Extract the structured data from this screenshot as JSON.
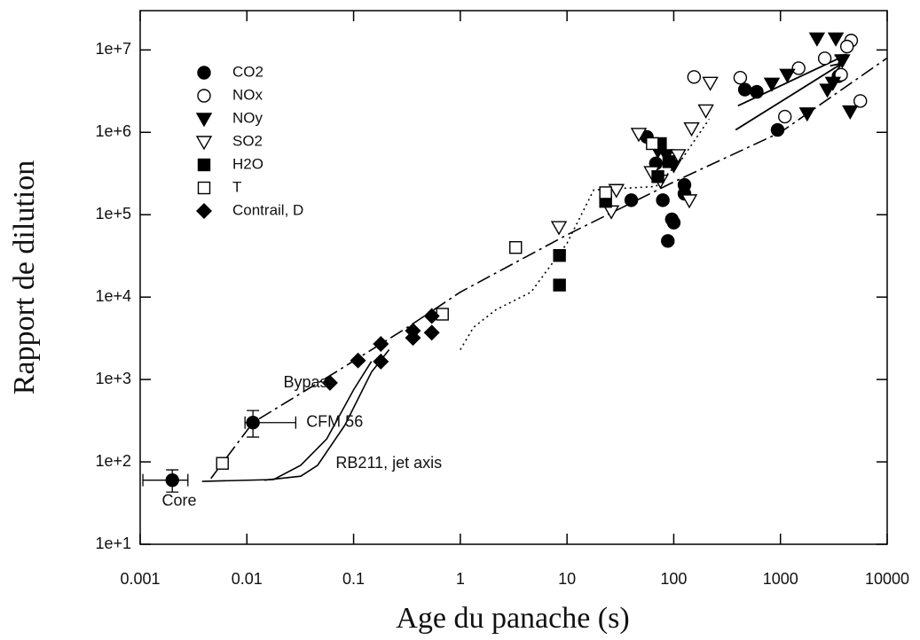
{
  "chart_data": {
    "type": "scatter",
    "xlabel": "Age du panache (s)",
    "ylabel": "Rapport de dilution",
    "xscale": "log",
    "yscale": "log",
    "xlim": [
      0.001,
      10000
    ],
    "ylim": [
      10,
      30000000
    ],
    "xticks": [
      0.001,
      0.01,
      0.1,
      1,
      10,
      100,
      1000,
      10000
    ],
    "yticks": [
      {
        "value": 10,
        "label": "1e+1"
      },
      {
        "value": 100,
        "label": "1e+2"
      },
      {
        "value": 1000,
        "label": "1e+3"
      },
      {
        "value": 10000,
        "label": "1e+4"
      },
      {
        "value": 100000,
        "label": "1e+5"
      },
      {
        "value": 1000000,
        "label": "1e+6"
      },
      {
        "value": 10000000,
        "label": "1e+7"
      }
    ],
    "legend": "upper left",
    "series": [
      {
        "name": "CO2",
        "marker": "circle",
        "color": "#000000",
        "x": [
          0.002,
          0.0114,
          40,
          56,
          68,
          79,
          88,
          96,
          100,
          126,
          126,
          464,
          600,
          940,
          3500
        ],
        "values": [
          60,
          300,
          150000,
          880000,
          420000,
          150000,
          48000,
          88000,
          80000,
          230000,
          180000,
          3300000,
          3100000,
          1070000,
          4800000
        ]
      },
      {
        "name": "NOx",
        "marker": "circle-open",
        "color": "#000000",
        "x": [
          155,
          420,
          1480,
          2600,
          4600,
          4200,
          5600,
          1100,
          3700
        ],
        "values": [
          4700000,
          4600000,
          6000000,
          7900000,
          13000000,
          11000000,
          2400000,
          1550000,
          5000000
        ]
      },
      {
        "name": "NOy",
        "marker": "tri-down",
        "color": "#000000",
        "x": [
          2200,
          3300,
          830,
          1160,
          1780,
          2750,
          3100,
          3800,
          4500,
          71,
          85,
          100
        ],
        "values": [
          13800000,
          13800000,
          3900000,
          5000000,
          1700000,
          3300000,
          4000000,
          7500000,
          1800000,
          600000,
          530000,
          400000
        ]
      },
      {
        "name": "SO2",
        "marker": "tri-down-open",
        "color": "#000000",
        "x": [
          8.4,
          26,
          29,
          47,
          62,
          140,
          147,
          200,
          220,
          110,
          75
        ],
        "values": [
          71000,
          110000,
          200000,
          960000,
          330000,
          150000,
          1120000,
          1850000,
          4000000,
          530000,
          260000
        ]
      },
      {
        "name": "H2O",
        "marker": "square",
        "color": "#000000",
        "x": [
          8.5,
          8.5,
          23,
          75,
          90,
          71
        ],
        "values": [
          32000,
          14000,
          145000,
          730000,
          440000,
          290000
        ]
      },
      {
        "name": "T",
        "marker": "square-open",
        "color": "#000000",
        "x": [
          0.0059,
          0.68,
          3.3,
          23,
          63
        ],
        "values": [
          96,
          6200,
          40000,
          185000,
          730000
        ]
      },
      {
        "name": "Contrail, D",
        "marker": "diamond",
        "color": "#000000",
        "x": [
          0.06,
          0.11,
          0.18,
          0.18,
          0.36,
          0.36,
          0.54,
          0.54
        ],
        "values": [
          910,
          1700,
          2700,
          1650,
          3900,
          3200,
          5900,
          3700
        ]
      }
    ],
    "error_bars": [
      {
        "x": 0.002,
        "y": 60,
        "xrange": [
          0.00106,
          0.0028
        ],
        "yrange": [
          43,
          80
        ]
      },
      {
        "x": 0.0114,
        "y": 300,
        "xrange": [
          0.0096,
          0.0287
        ],
        "yrange": [
          200,
          420
        ]
      }
    ],
    "lines": [
      {
        "style": "dashdot",
        "x": [
          0.0046,
          0.0114,
          0.068,
          0.32,
          1,
          10,
          100,
          1000,
          10000
        ],
        "values": [
          63,
          300,
          1230,
          4300,
          11500,
          57000,
          250000,
          1000000,
          8000000
        ]
      },
      {
        "style": "solid",
        "x": [
          0.0038,
          0.0178,
          0.032,
          0.056,
          0.1,
          0.147
        ],
        "values": [
          58,
          61,
          91,
          190,
          750,
          1660
        ]
      },
      {
        "style": "solid",
        "x": [
          0.0146,
          0.032,
          0.046,
          0.083,
          0.147,
          0.215
        ],
        "values": [
          60,
          67,
          91,
          280,
          1230,
          2300
        ]
      },
      {
        "style": "dotted",
        "x": [
          1,
          1.33,
          2.15,
          4.6,
          10,
          17.8,
          68,
          120,
          215
        ],
        "values": [
          2300,
          4300,
          7000,
          11500,
          45000,
          200000,
          220000,
          480000,
          1450000
        ]
      }
    ],
    "arrows": [
      {
        "x": [
          380,
          3800
        ],
        "values": [
          1070000,
          6900000
        ]
      },
      {
        "x": [
          400,
          4200
        ],
        "values": [
          2100000,
          8800000
        ]
      }
    ],
    "annotations": [
      {
        "text": "Bypass",
        "x": 0.022,
        "y": 900
      },
      {
        "text": "CFM 56",
        "x": 0.036,
        "y": 300
      },
      {
        "text": "RB211, jet axis",
        "x": 0.068,
        "y": 95
      },
      {
        "text": "Core",
        "x": 0.0016,
        "y": 33
      }
    ]
  }
}
